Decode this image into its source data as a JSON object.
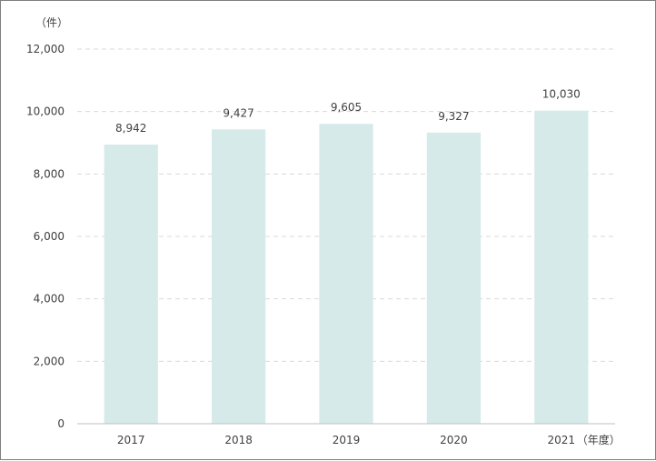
{
  "chart_data": {
    "type": "bar",
    "y_unit": "（件）",
    "x_unit": "（年度）",
    "categories": [
      "2017",
      "2018",
      "2019",
      "2020",
      "2021"
    ],
    "values": [
      8942,
      9427,
      9605,
      9327,
      10030
    ],
    "value_labels": [
      "8,942",
      "9,427",
      "9,605",
      "9,327",
      "10,030"
    ],
    "yticks": [
      "0",
      "2,000",
      "4,000",
      "6,000",
      "8,000",
      "10,000",
      "12,000"
    ],
    "ytick_values": [
      0,
      2000,
      4000,
      6000,
      8000,
      10000,
      12000
    ],
    "ylim": [
      0,
      12000
    ],
    "grid": true,
    "bar_color": "#d6eaea",
    "grid_color": "#d9d9d9",
    "axis_color": "#bfbfbf"
  }
}
